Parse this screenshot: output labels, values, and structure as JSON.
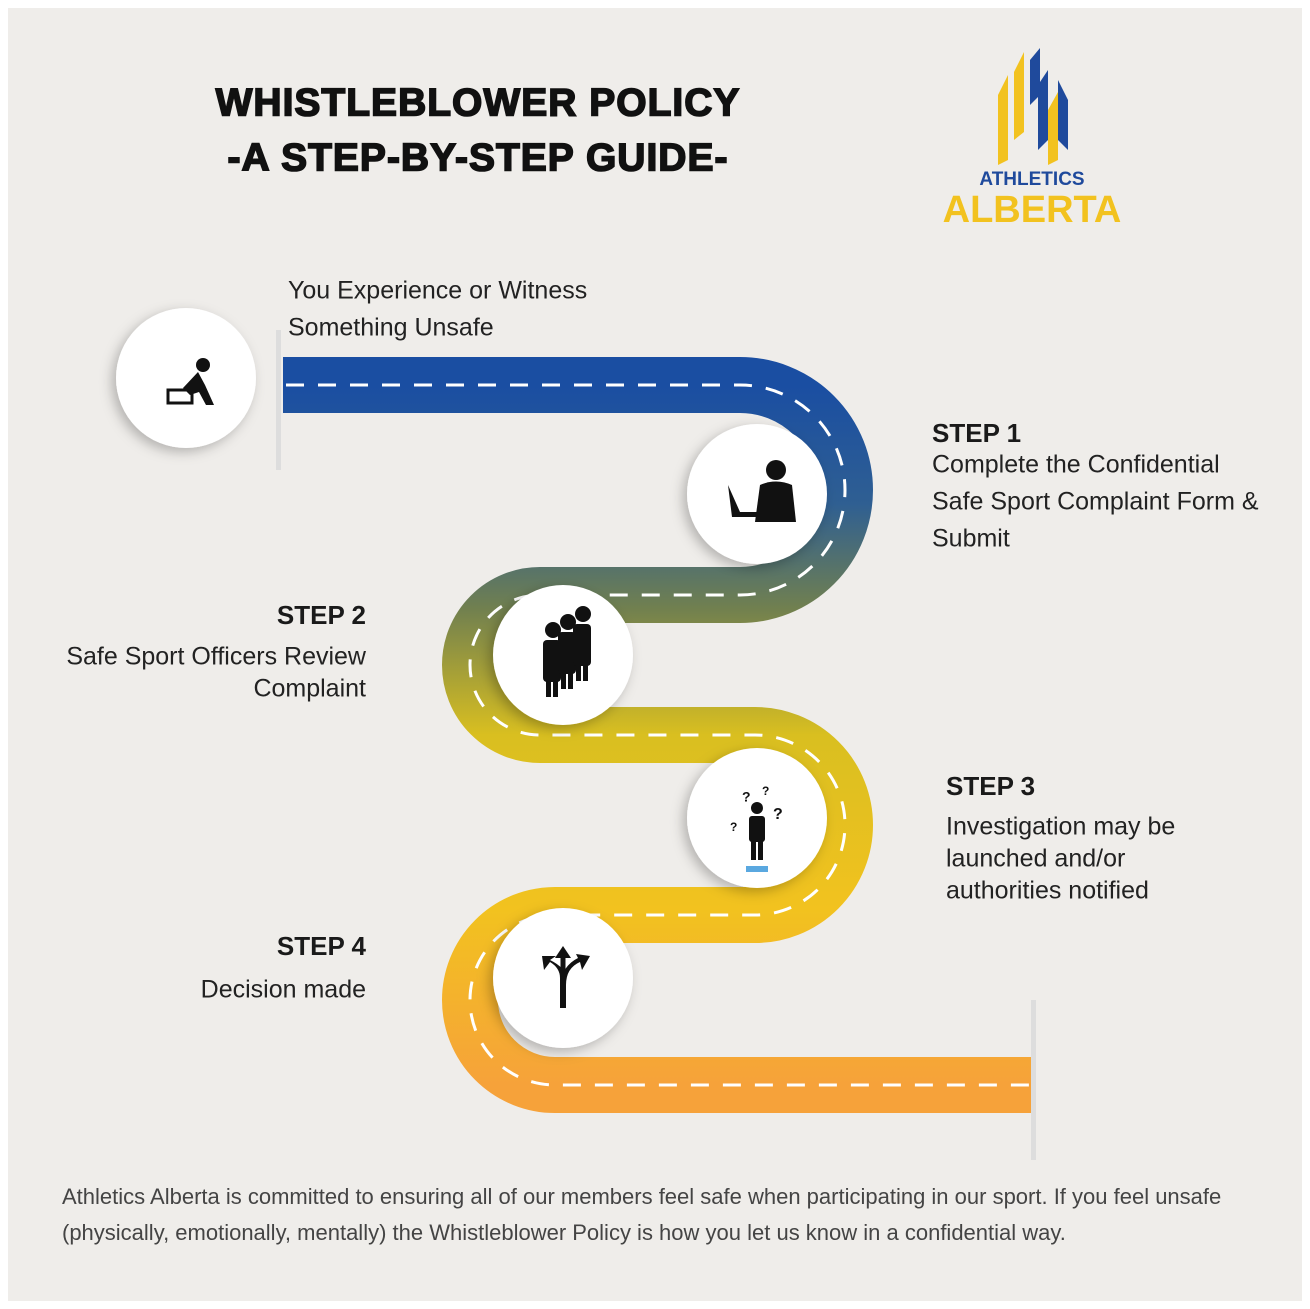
{
  "header": {
    "title_lines": [
      "WHISTLEBLOWER POLICY",
      "-A STEP-BY-STEP GUIDE-"
    ]
  },
  "logo": {
    "top": "ATHLETICS",
    "bottom": "ALBERTA"
  },
  "start": {
    "lines": [
      "You Experience or Witness",
      "Something Unsafe"
    ]
  },
  "steps": [
    {
      "label": "STEP 1",
      "lines": [
        "Complete the Confidential",
        "Safe Sport Complaint Form &",
        "Submit"
      ]
    },
    {
      "label": "STEP 2",
      "lines": [
        "Safe Sport Officers Review",
        "Complaint"
      ]
    },
    {
      "label": "STEP 3",
      "lines": [
        "Investigation may be",
        "launched and/or",
        "authorities notified"
      ]
    },
    {
      "label": "STEP 4",
      "lines": [
        "Decision made"
      ]
    }
  ],
  "footer": {
    "lines": [
      "Athletics Alberta is committed to ensuring all of our members feel safe when participating in our sport. If you feel unsafe",
      "(physically, emotionally, mentally) the Whistleblower Policy is how you let us know in a confidential way."
    ]
  }
}
